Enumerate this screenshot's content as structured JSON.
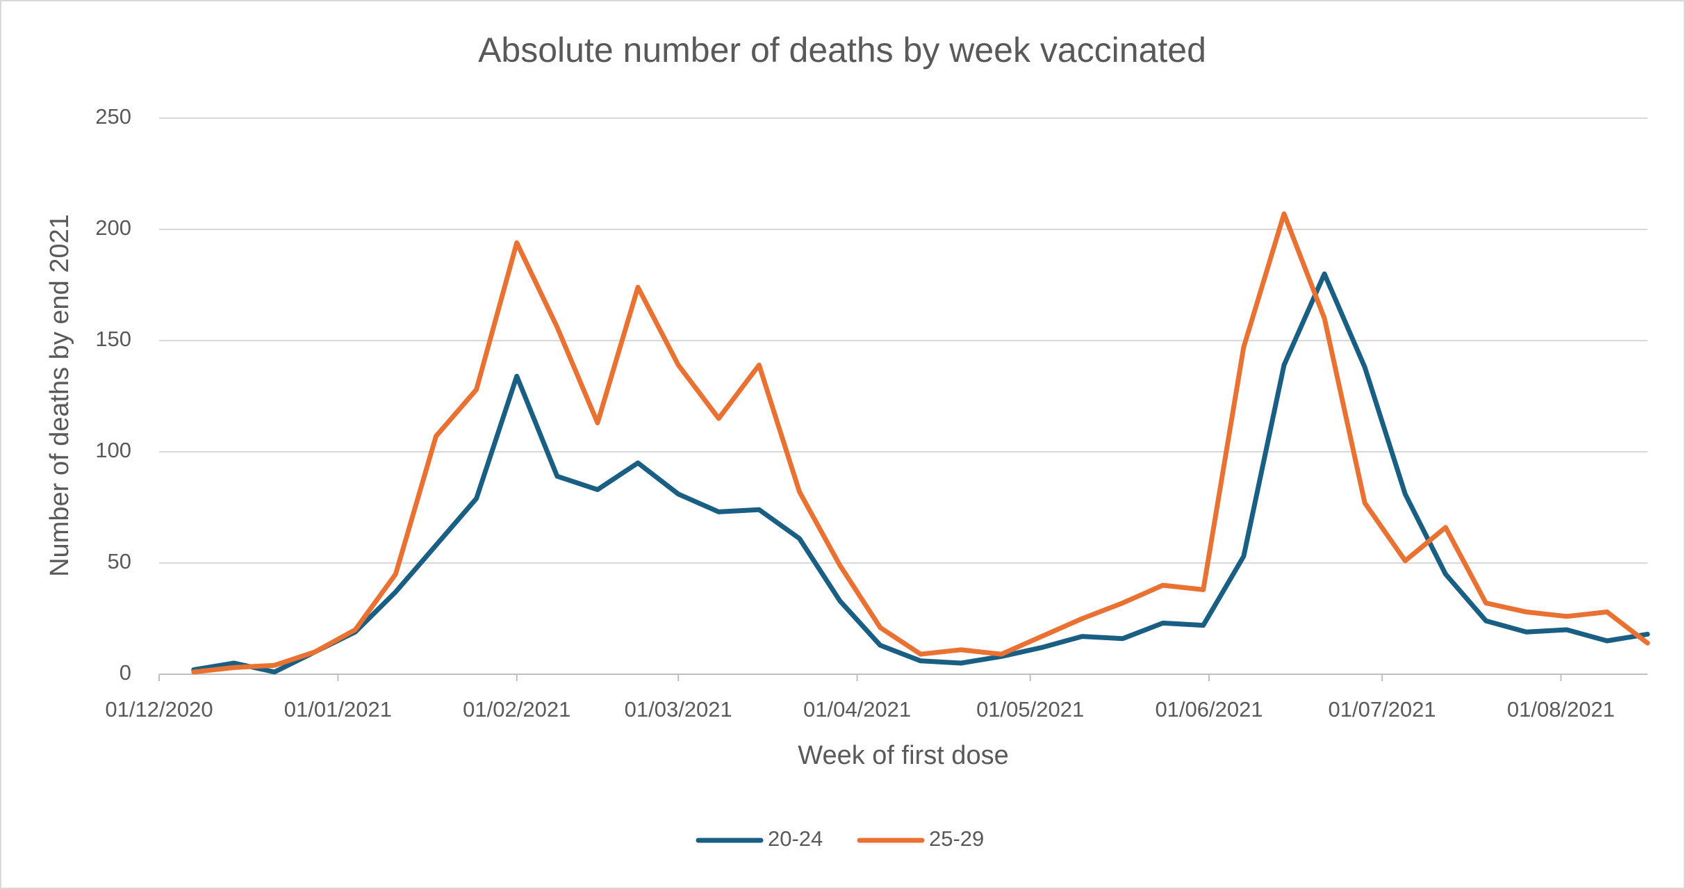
{
  "chart_data": {
    "type": "line",
    "title": "Absolute number of deaths by week vaccinated",
    "x_label": "Week of first dose",
    "y_label": "Number of deaths by end 2021",
    "x": [
      "2020-12-07",
      "2020-12-14",
      "2020-12-21",
      "2020-12-28",
      "2021-01-04",
      "2021-01-11",
      "2021-01-18",
      "2021-01-25",
      "2021-02-01",
      "2021-02-08",
      "2021-02-15",
      "2021-02-22",
      "2021-03-01",
      "2021-03-08",
      "2021-03-15",
      "2021-03-22",
      "2021-03-29",
      "2021-04-05",
      "2021-04-12",
      "2021-04-19",
      "2021-04-26",
      "2021-05-03",
      "2021-05-10",
      "2021-05-17",
      "2021-05-24",
      "2021-05-31",
      "2021-06-07",
      "2021-06-14",
      "2021-06-21",
      "2021-06-28",
      "2021-07-05",
      "2021-07-12",
      "2021-07-19",
      "2021-07-26",
      "2021-08-02",
      "2021-08-09",
      "2021-08-16"
    ],
    "series": [
      {
        "name": "20-24",
        "color": "#195e83",
        "values": [
          2,
          5,
          1,
          10,
          19,
          37,
          58,
          79,
          134,
          89,
          83,
          95,
          81,
          73,
          74,
          61,
          33,
          13,
          6,
          5,
          8,
          12,
          17,
          16,
          23,
          22,
          53,
          139,
          180,
          138,
          81,
          45,
          24,
          19,
          20,
          15,
          18
        ]
      },
      {
        "name": "25-29",
        "color": "#e97132",
        "values": [
          1,
          3,
          4,
          10,
          20,
          45,
          107,
          128,
          194,
          156,
          113,
          174,
          139,
          115,
          139,
          82,
          49,
          21,
          9,
          11,
          9,
          17,
          25,
          32,
          40,
          38,
          147,
          207,
          160,
          77,
          51,
          66,
          32,
          28,
          26,
          28,
          14
        ]
      }
    ],
    "xlim": [
      "2020-12-01",
      "2021-08-16"
    ],
    "xticks": [
      {
        "value": "2020-12-01",
        "label": "01/12/2020"
      },
      {
        "value": "2021-01-01",
        "label": "01/01/2021"
      },
      {
        "value": "2021-02-01",
        "label": "01/02/2021"
      },
      {
        "value": "2021-03-01",
        "label": "01/03/2021"
      },
      {
        "value": "2021-04-01",
        "label": "01/04/2021"
      },
      {
        "value": "2021-05-01",
        "label": "01/05/2021"
      },
      {
        "value": "2021-06-01",
        "label": "01/06/2021"
      },
      {
        "value": "2021-07-01",
        "label": "01/07/2021"
      },
      {
        "value": "2021-08-01",
        "label": "01/08/2021"
      }
    ],
    "ylim": [
      0,
      250
    ],
    "yticks": [
      0,
      50,
      100,
      150,
      200,
      250
    ],
    "grid": true,
    "legend": "bottom"
  }
}
